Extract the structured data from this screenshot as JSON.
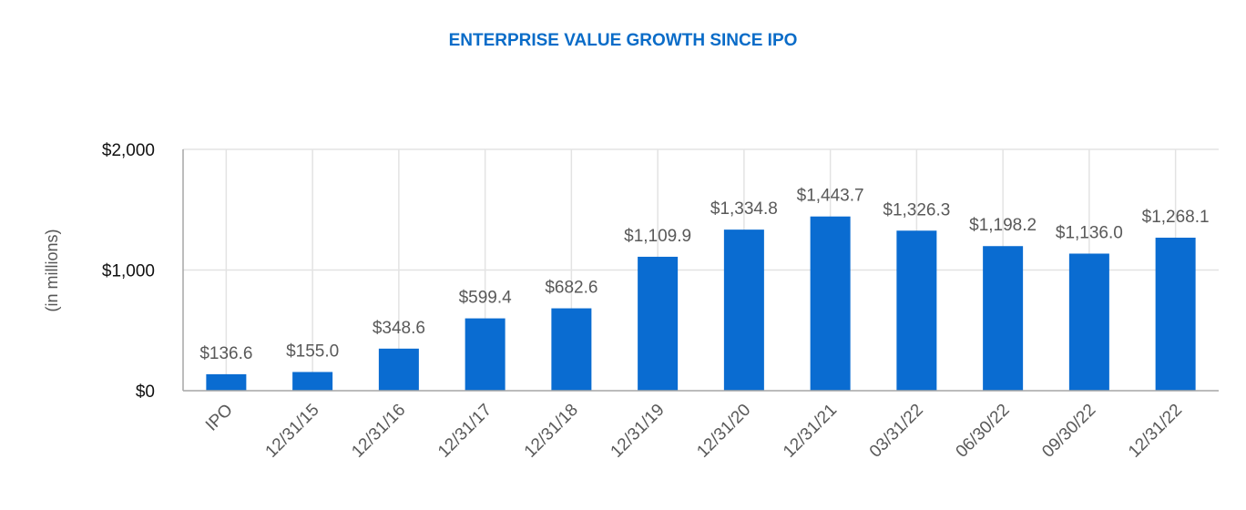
{
  "chart_data": {
    "type": "bar",
    "title": "ENTERPRISE VALUE GROWTH SINCE IPO",
    "xlabel": "",
    "ylabel": "(in millions)",
    "categories": [
      "IPO",
      "12/31/15",
      "12/31/16",
      "12/31/17",
      "12/31/18",
      "12/31/19",
      "12/31/20",
      "12/31/21",
      "03/31/22",
      "06/30/22",
      "09/30/22",
      "12/31/22"
    ],
    "values": [
      136.6,
      155.0,
      348.6,
      599.4,
      682.6,
      1109.9,
      1334.8,
      1443.7,
      1326.3,
      1198.2,
      1136.0,
      1268.1
    ],
    "data_labels": [
      "$136.6",
      "$155.0",
      "$348.6",
      "$599.4",
      "$682.6",
      "$1,109.9",
      "$1,334.8",
      "$1,443.7",
      "$1,326.3",
      "$1,198.2",
      "$1,136.0",
      "$1,268.1"
    ],
    "ylim": [
      0,
      2000
    ],
    "yticks": [
      0,
      1000,
      2000
    ],
    "ytick_labels": [
      "$0",
      "$1,000",
      "$2,000"
    ],
    "grid": true,
    "bar_color": "#0a6cd1",
    "title_color": "#0a6cc8"
  }
}
